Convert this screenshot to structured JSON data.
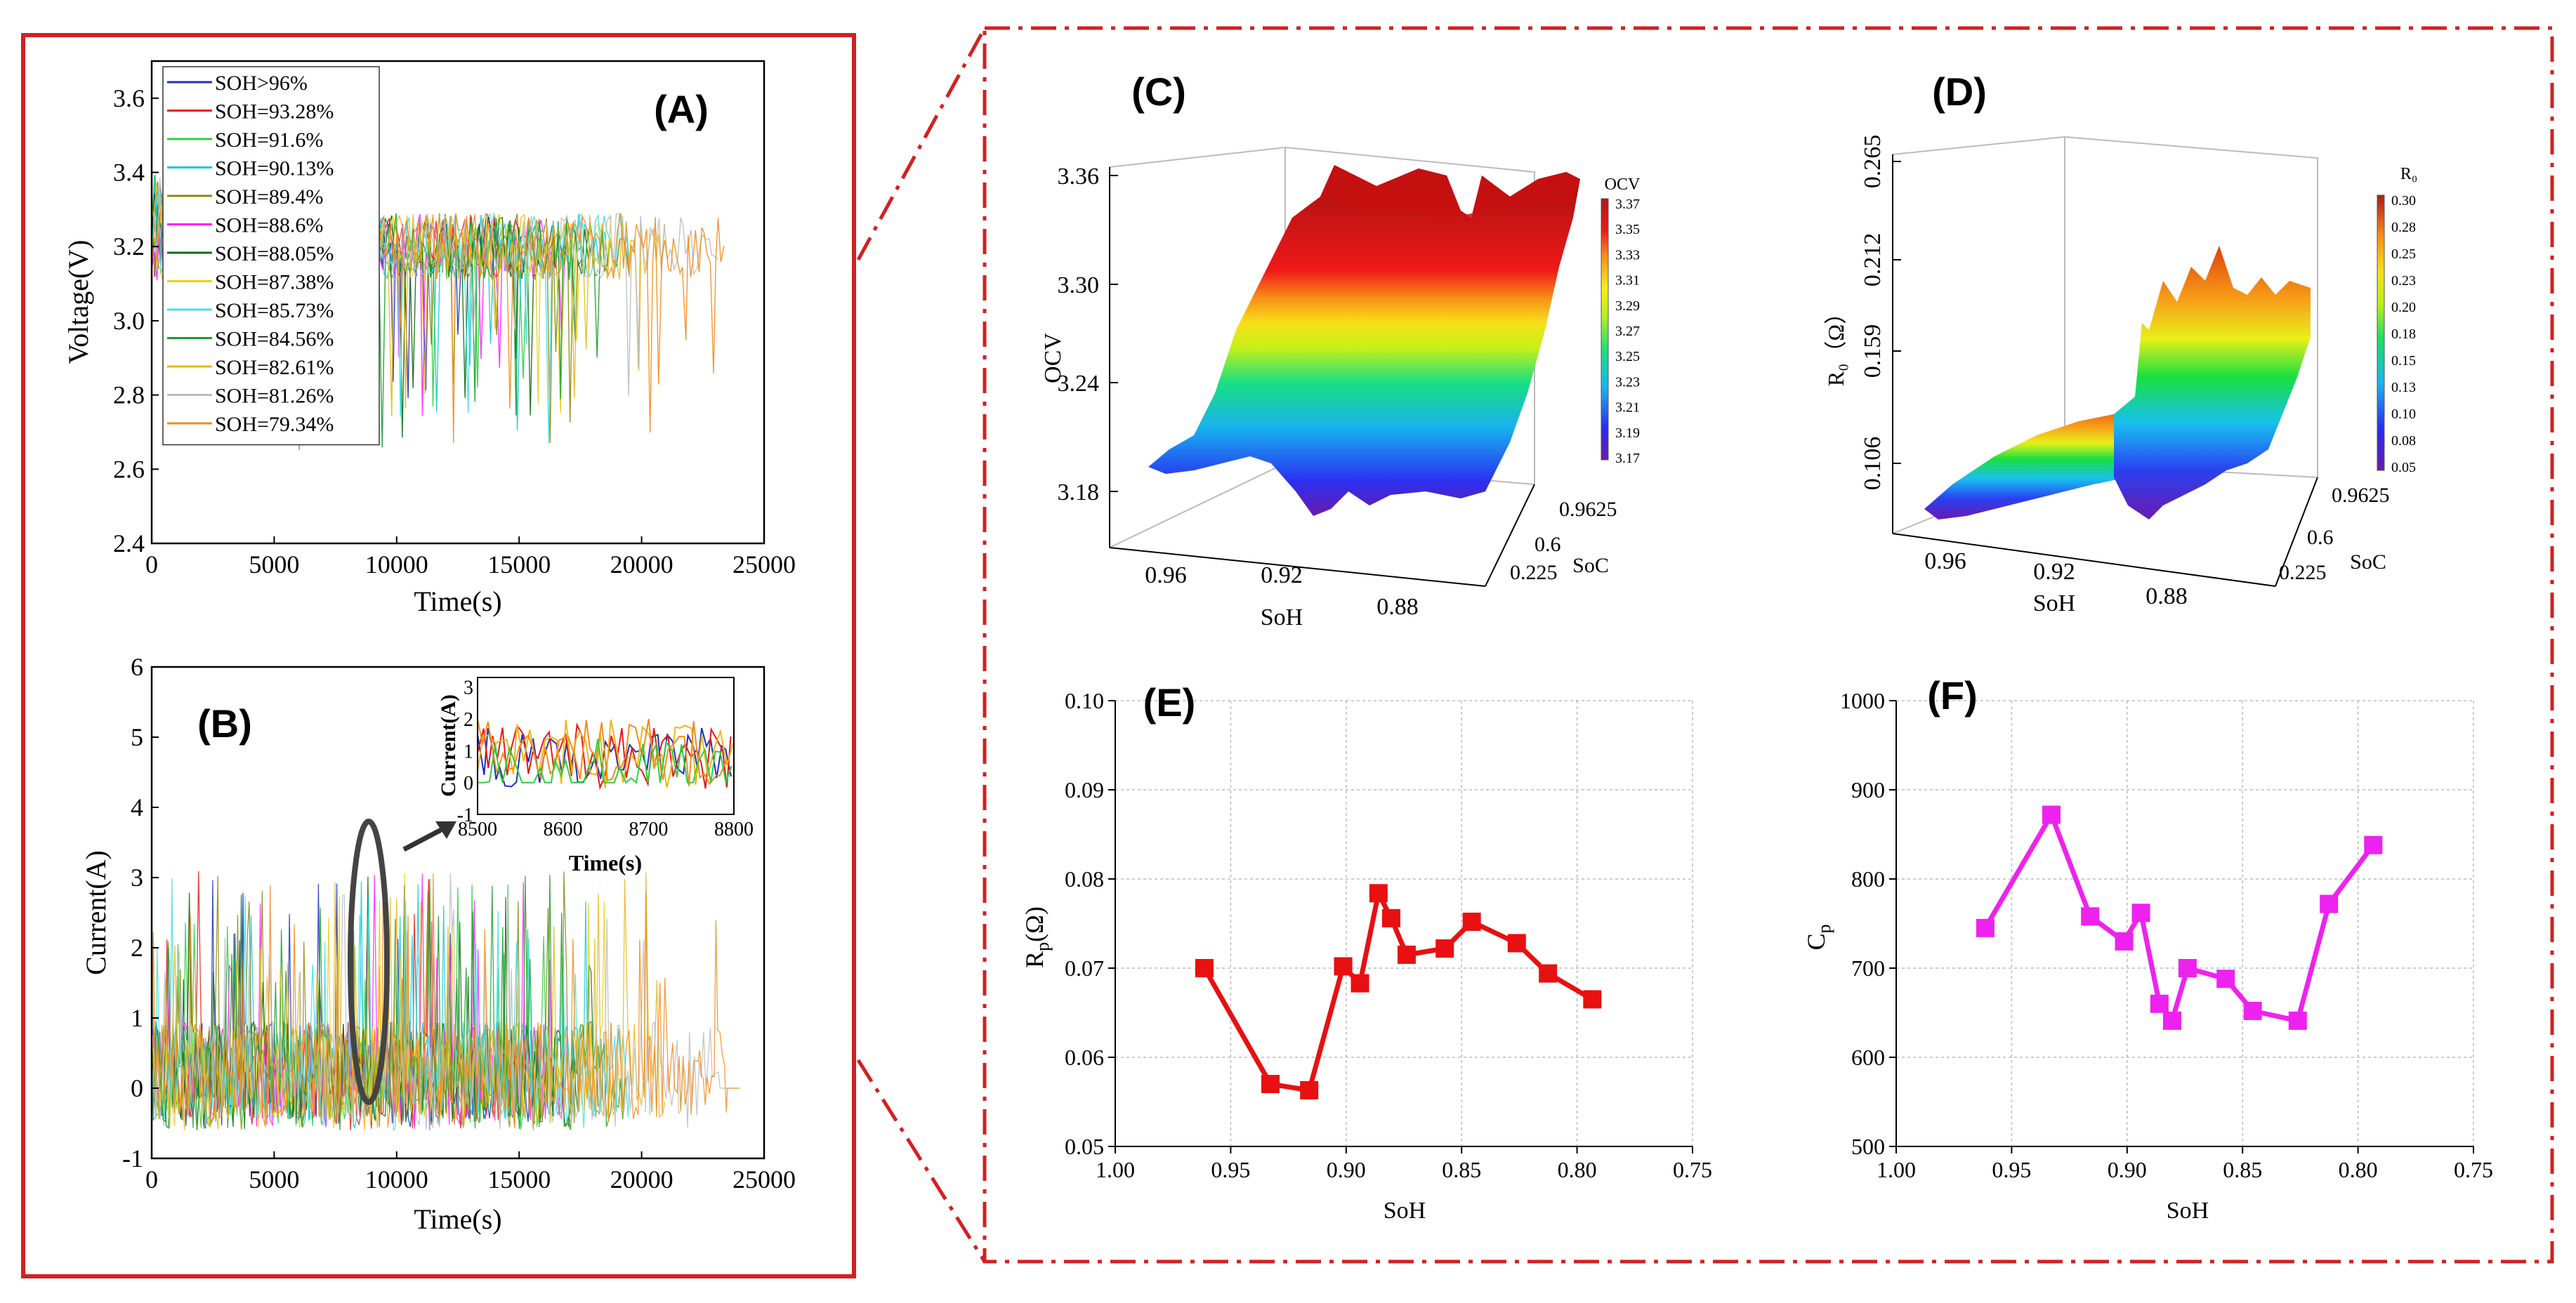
{
  "frames": {
    "left_color": "#d42020",
    "right_color": "#d42020",
    "right_style": "dash-dot"
  },
  "chart_data": [
    {
      "id": "A",
      "type": "line",
      "panel_label": "(A)",
      "title": "",
      "xlabel": "Time(s)",
      "ylabel": "Voltage(V)",
      "xlim": [
        0,
        25000
      ],
      "ylim": [
        2.4,
        3.7
      ],
      "xticks": [
        0,
        5000,
        10000,
        15000,
        20000,
        25000
      ],
      "yticks": [
        2.4,
        2.6,
        2.8,
        3.0,
        3.2,
        3.4,
        3.6
      ],
      "legend": "top-left",
      "series": [
        {
          "name": "SOH>96%",
          "color": "#1f2fbf",
          "end": 15500
        },
        {
          "name": "SOH=93.28%",
          "color": "#e81818",
          "end": 15200
        },
        {
          "name": "SOH=91.6%",
          "color": "#2fcf3f",
          "end": 16200
        },
        {
          "name": "SOH=90.13%",
          "color": "#18c8d8",
          "end": 18700
        },
        {
          "name": "SOH=89.4%",
          "color": "#8a8a10",
          "end": 17600
        },
        {
          "name": "SOH=88.6%",
          "color": "#ff22ff",
          "end": 16900
        },
        {
          "name": "SOH=88.05%",
          "color": "#126b12",
          "end": 18300
        },
        {
          "name": "SOH=87.38%",
          "color": "#e6d21a",
          "end": 18800
        },
        {
          "name": "SOH=85.73%",
          "color": "#40e0e8",
          "end": 19600
        },
        {
          "name": "SOH=84.56%",
          "color": "#1a9e2a",
          "end": 19500
        },
        {
          "name": "SOH=82.61%",
          "color": "#e8b81a",
          "end": 21000
        },
        {
          "name": "SOH=81.26%",
          "color": "#bcbcbc",
          "end": 23200
        },
        {
          "name": "SOH=79.34%",
          "color": "#f28c1a",
          "end": 23500
        }
      ]
    },
    {
      "id": "B",
      "type": "line",
      "panel_label": "(B)",
      "xlabel": "Time(s)",
      "ylabel": "Current(A)",
      "xlim": [
        0,
        25000
      ],
      "ylim": [
        -1,
        6
      ],
      "xticks": [
        0,
        5000,
        10000,
        15000,
        20000,
        25000
      ],
      "yticks": [
        -1,
        0,
        1,
        2,
        3,
        4,
        5,
        6
      ],
      "highlight_x": 8650,
      "inset": {
        "xlabel": "Time(s)",
        "ylabel": "Current(A)",
        "xlim": [
          8500,
          8800
        ],
        "ylim": [
          -1,
          3.3
        ],
        "xticks": [
          8500,
          8600,
          8700,
          8800
        ],
        "yticks": [
          -1,
          0,
          1,
          2,
          3
        ]
      }
    },
    {
      "id": "C",
      "type": "surface",
      "panel_label": "(C)",
      "zlabel": "OCV",
      "xlabel": "SoH",
      "ylabel": "SoC",
      "zticks": [
        3.18,
        3.24,
        3.3,
        3.36
      ],
      "xticks": [
        0.96,
        0.92,
        0.88
      ],
      "yticks": [
        0.225,
        0.6,
        0.9625
      ],
      "colorbar_title": "OCV",
      "colorbar_ticks": [
        "3.37",
        "3.35",
        "3.33",
        "3.31",
        "3.29",
        "3.27",
        "3.25",
        "3.23",
        "3.21",
        "3.19",
        "3.17"
      ]
    },
    {
      "id": "D",
      "type": "surface",
      "panel_label": "(D)",
      "zlabel": "R₀（Ω）",
      "xlabel": "SoH",
      "ylabel": "SoC",
      "zticks": [
        0.106,
        0.159,
        0.212,
        0.265
      ],
      "xticks": [
        0.96,
        0.92,
        0.88
      ],
      "yticks": [
        0.225,
        0.6,
        0.9625
      ],
      "colorbar_title": "R₀",
      "colorbar_ticks": [
        "0.30",
        "0.28",
        "0.25",
        "0.23",
        "0.20",
        "0.18",
        "0.15",
        "0.13",
        "0.10",
        "0.08",
        "0.05"
      ]
    },
    {
      "id": "E",
      "type": "line",
      "panel_label": "(E)",
      "xlabel": "SoH",
      "ylabel": "Rp(Ω)",
      "color": "#e81010",
      "xlim": [
        1.0,
        0.75
      ],
      "ylim": [
        0.05,
        0.1
      ],
      "xticks": [
        1.0,
        0.95,
        0.9,
        0.85,
        0.8,
        0.75
      ],
      "yticks": [
        0.05,
        0.06,
        0.07,
        0.08,
        0.09,
        0.1
      ],
      "grid": true,
      "x": [
        0.9614,
        0.9328,
        0.916,
        0.9013,
        0.894,
        0.886,
        0.8805,
        0.8738,
        0.8573,
        0.8456,
        0.8261,
        0.8126,
        0.7934
      ],
      "y": [
        0.07,
        0.057,
        0.0563,
        0.0702,
        0.0683,
        0.0784,
        0.0756,
        0.0715,
        0.0722,
        0.0752,
        0.0728,
        0.0694,
        0.0665
      ]
    },
    {
      "id": "F",
      "type": "line",
      "panel_label": "(F)",
      "xlabel": "SoH",
      "ylabel": "Cp",
      "color": "#ee22ee",
      "xlim": [
        1.0,
        0.75
      ],
      "ylim": [
        500,
        1000
      ],
      "xticks": [
        1.0,
        0.95,
        0.9,
        0.85,
        0.8,
        0.75
      ],
      "yticks": [
        500,
        600,
        700,
        800,
        900,
        1000
      ],
      "grid": true,
      "x": [
        0.9614,
        0.9328,
        0.916,
        0.9013,
        0.894,
        0.886,
        0.8805,
        0.8738,
        0.8573,
        0.8456,
        0.8261,
        0.8126,
        0.7934
      ],
      "y": [
        745,
        872,
        758,
        730,
        762,
        660,
        641,
        700,
        688,
        652,
        641,
        772,
        838
      ]
    }
  ]
}
